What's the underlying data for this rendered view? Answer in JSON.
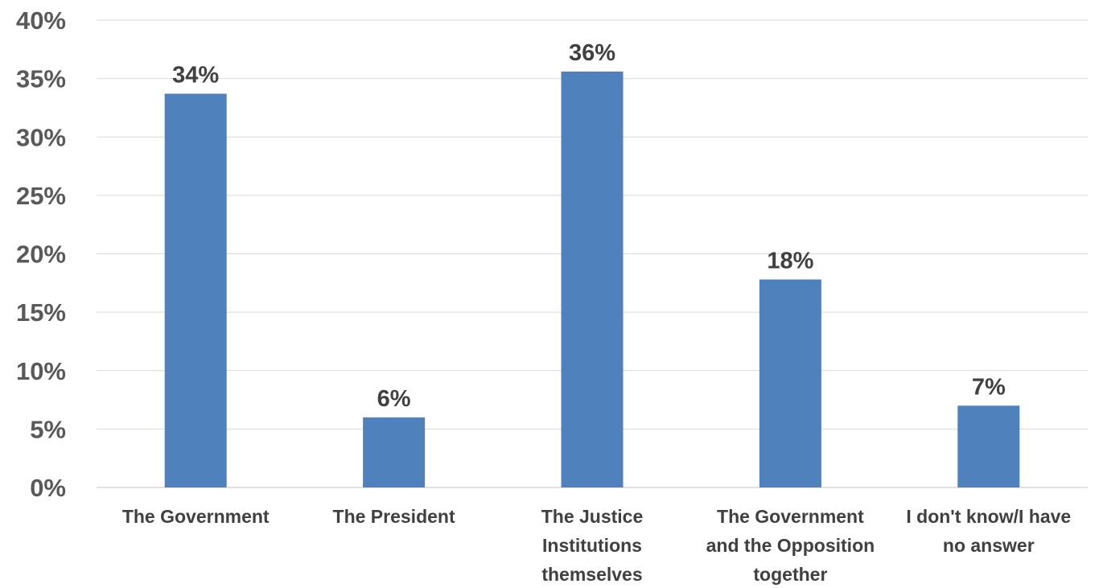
{
  "chart_data": {
    "type": "bar",
    "categories": [
      [
        "The Government"
      ],
      [
        "The President"
      ],
      [
        "The Justice",
        "Institutions",
        "themselves"
      ],
      [
        "The Government",
        "and the Opposition",
        "together"
      ],
      [
        "I don't know/I have",
        "no answer"
      ]
    ],
    "values": [
      34,
      6,
      36,
      18,
      7
    ],
    "data_labels": [
      "34%",
      "6%",
      "36%",
      "18%",
      "7%"
    ],
    "y_ticks": [
      "0%",
      "5%",
      "10%",
      "15%",
      "20%",
      "25%",
      "30%",
      "35%",
      "40%"
    ],
    "ylim": [
      0,
      40
    ],
    "bar_values_exact": [
      33.7,
      6.0,
      35.6,
      17.8,
      7.0
    ],
    "grid": true,
    "legend": "none",
    "bar_color": "#4f81bd",
    "title": "",
    "xlabel": "",
    "ylabel": ""
  }
}
